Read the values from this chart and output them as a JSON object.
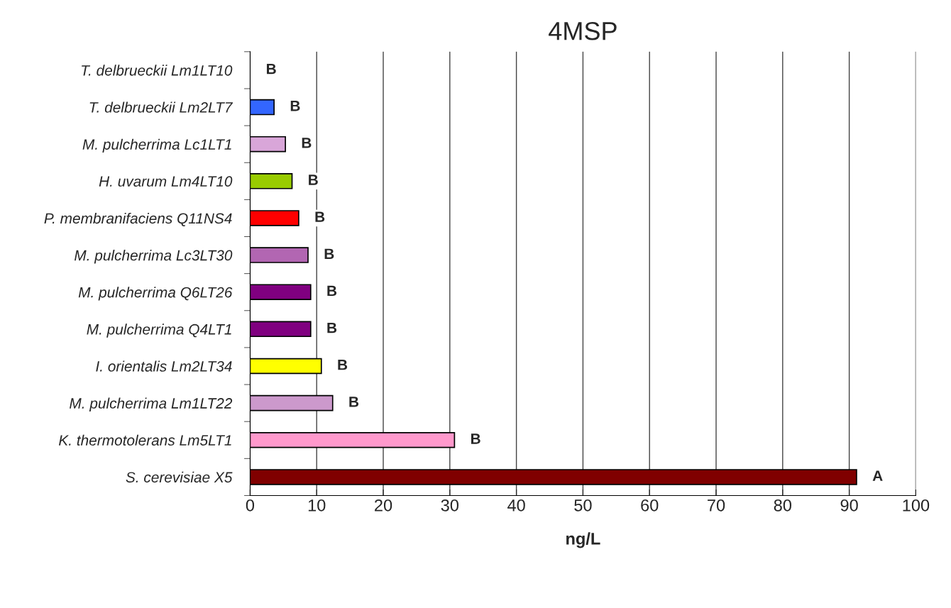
{
  "chart_data": {
    "type": "bar",
    "orientation": "horizontal",
    "title": "4MSP",
    "xlabel": "ng/L",
    "categories": [
      "T. delbrueckii Lm1LT10",
      "T. delbrueckii Lm2LT7",
      "M. pulcherrima Lc1LT1",
      "H. uvarum Lm4LT10",
      "P. membranifaciens Q11NS4",
      "M. pulcherrima Lc3LT30",
      "M. pulcherrima Q6LT26",
      "M. pulcherrima Q4LT1",
      "I. orientalis Lm2LT34",
      "M. pulcherrima Lm1LT22",
      "K. thermotolerans Lm5LT1",
      "S. cerevisiae X5"
    ],
    "values": [
      0,
      3.6,
      5.3,
      6.3,
      7.3,
      8.7,
      9.1,
      9.1,
      10.7,
      12.4,
      30.7,
      91.1
    ],
    "colors": [
      null,
      "#3366ff",
      "#d9a6d9",
      "#99cc00",
      "#ff0000",
      "#b266b2",
      "#800080",
      "#800080",
      "#ffff00",
      "#cc99cc",
      "#ff99cc",
      "#800000"
    ],
    "xlim": [
      0,
      100
    ],
    "xticks": [
      0,
      10,
      20,
      30,
      40,
      50,
      60,
      70,
      80,
      90,
      100
    ],
    "grid": "x",
    "annotations": [
      {
        "text": "B",
        "x": 0,
        "y": "T. delbrueckii Lm1LT10"
      },
      {
        "text": "B",
        "x": 3.6,
        "y": "T. delbrueckii Lm2LT7"
      },
      {
        "text": "B",
        "x": 5.3,
        "y": "M. pulcherrima Lc1LT1"
      },
      {
        "text": "B",
        "x": 6.3,
        "y": "H. uvarum Lm4LT10"
      },
      {
        "text": "B",
        "x": 7.3,
        "y": "P. membranifaciens Q11NS4"
      },
      {
        "text": "B",
        "x": 8.7,
        "y": "M. pulcherrima Lc3LT30"
      },
      {
        "text": "B",
        "x": 9.1,
        "y": "M. pulcherrima Q6LT26"
      },
      {
        "text": "B",
        "x": 9.1,
        "y": "M. pulcherrima Q4LT1"
      },
      {
        "text": "B",
        "x": 10.7,
        "y": "I. orientalis Lm2LT34"
      },
      {
        "text": "B",
        "x": 12.4,
        "y": "M. pulcherrima Lm1LT22"
      },
      {
        "text": "B",
        "x": 30.7,
        "y": "K. thermotolerans Lm5LT1"
      },
      {
        "text": "A",
        "x": 91.1,
        "y": "S. cerevisiae X5"
      }
    ]
  }
}
